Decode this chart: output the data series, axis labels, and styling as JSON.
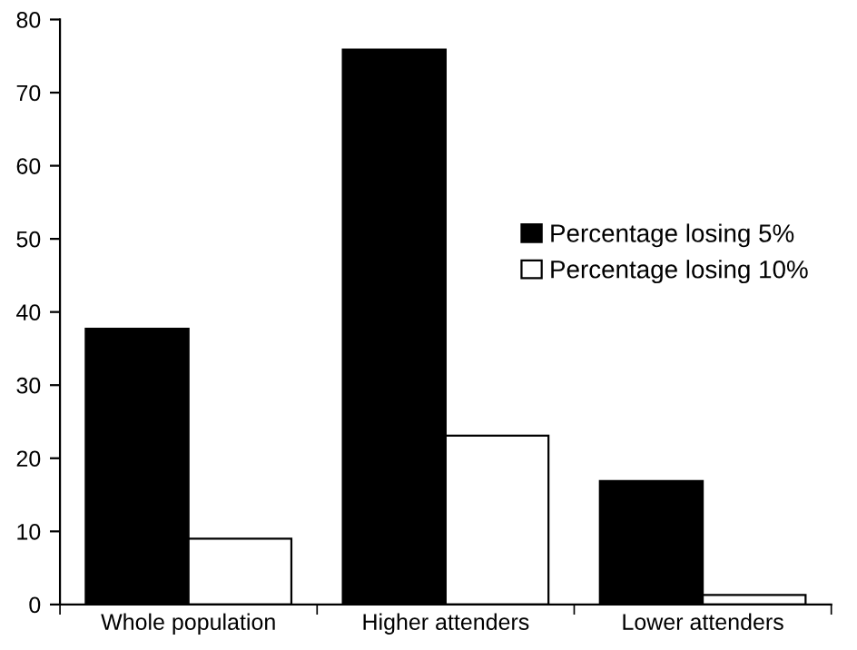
{
  "chart_data": {
    "type": "bar",
    "categories": [
      "Whole population",
      "Higher attenders",
      "Lower attenders"
    ],
    "series": [
      {
        "name": "Percentage losing 5%",
        "color": "#000000",
        "values": [
          37.7,
          75.9,
          16.9
        ]
      },
      {
        "name": "Percentage losing 10%",
        "color": "#ffffff",
        "values": [
          9.0,
          23.1,
          1.3
        ]
      }
    ],
    "ylim": [
      0,
      80
    ],
    "yticks": [
      0,
      10,
      20,
      30,
      40,
      50,
      60,
      70,
      80
    ],
    "grid": false,
    "legend": "right"
  }
}
